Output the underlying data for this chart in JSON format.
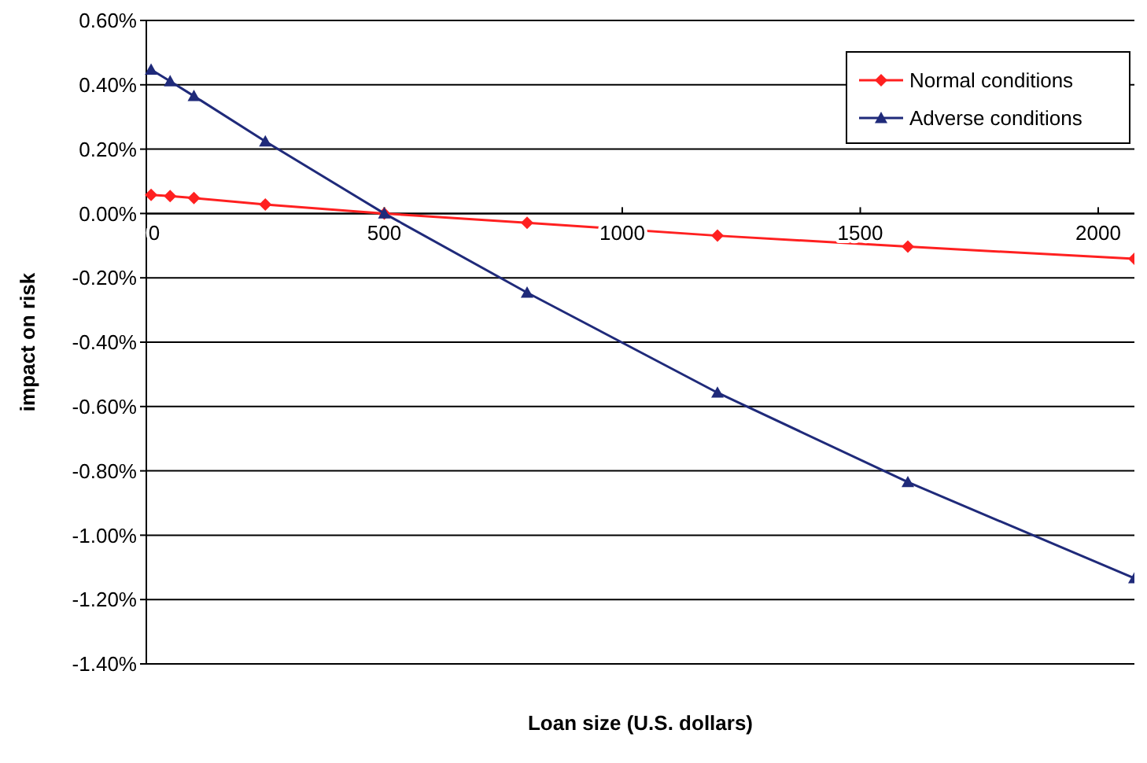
{
  "chart_data": {
    "type": "line",
    "xlabel": "Loan size (U.S. dollars)",
    "ylabel": "impact on risk",
    "xlim": [
      0,
      2076
    ],
    "xticks": [
      0,
      500,
      1000,
      1500,
      2000
    ],
    "ylim": [
      -1.4,
      0.6
    ],
    "yticks": [
      {
        "value": 0.6,
        "label": "0.60%"
      },
      {
        "value": 0.4,
        "label": "0.40%"
      },
      {
        "value": 0.2,
        "label": "0.20%"
      },
      {
        "value": 0,
        "label": "0.00%"
      },
      {
        "value": -0.2,
        "label": "-0.20%"
      },
      {
        "value": -0.4,
        "label": "-0.40%"
      },
      {
        "value": -0.6,
        "label": "-0.60%"
      },
      {
        "value": -0.8,
        "label": "-0.80%"
      },
      {
        "value": -1,
        "label": "-1.00%"
      },
      {
        "value": -1.2,
        "label": "-1.20%"
      },
      {
        "value": -1.4,
        "label": "-1.40%"
      }
    ],
    "grid": "y",
    "legend": "top right",
    "series": [
      {
        "name": "Normal conditions",
        "color": "#ff2020",
        "marker": "diamond",
        "x": [
          10,
          50,
          100,
          250,
          500,
          800,
          1200,
          1600,
          2076
        ],
        "values": [
          0.058,
          0.054,
          0.048,
          0.028,
          0,
          -0.029,
          -0.069,
          -0.103,
          -0.141
        ]
      },
      {
        "name": "Adverse conditions",
        "color": "#1f2a7a",
        "marker": "triangle",
        "x": [
          10,
          50,
          100,
          250,
          500,
          800,
          1200,
          1600,
          2076
        ],
        "values": [
          0.447,
          0.411,
          0.365,
          0.224,
          0,
          -0.246,
          -0.557,
          -0.835,
          -1.134
        ]
      }
    ]
  }
}
